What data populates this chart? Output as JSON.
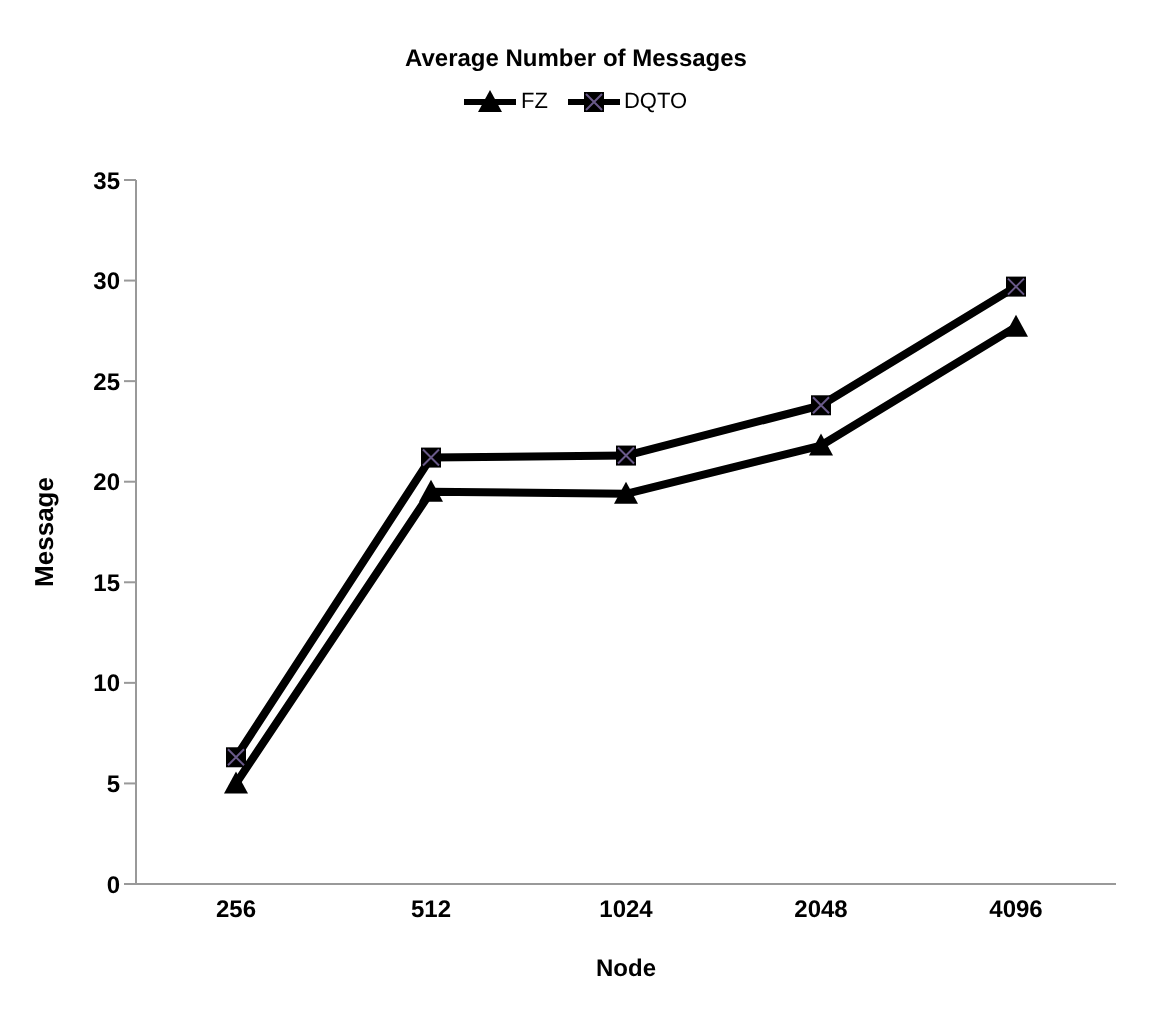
{
  "chart_data": {
    "type": "line",
    "title": "Average Number of Messages",
    "xlabel": "Node",
    "ylabel": "Message",
    "categories": [
      "256",
      "512",
      "1024",
      "2048",
      "4096"
    ],
    "series": [
      {
        "name": "FZ",
        "color": "#000000",
        "marker": "triangle",
        "values": [
          5.0,
          19.5,
          19.4,
          21.8,
          27.7
        ]
      },
      {
        "name": "DQTO",
        "color": "#000000",
        "marker": "square",
        "values": [
          6.3,
          21.2,
          21.3,
          23.8,
          29.7
        ]
      }
    ],
    "ylim": [
      0,
      35
    ],
    "yticks": [
      0,
      5,
      10,
      15,
      20,
      25,
      30,
      35
    ],
    "grid": false,
    "legend": "top",
    "line_style": "solid"
  }
}
